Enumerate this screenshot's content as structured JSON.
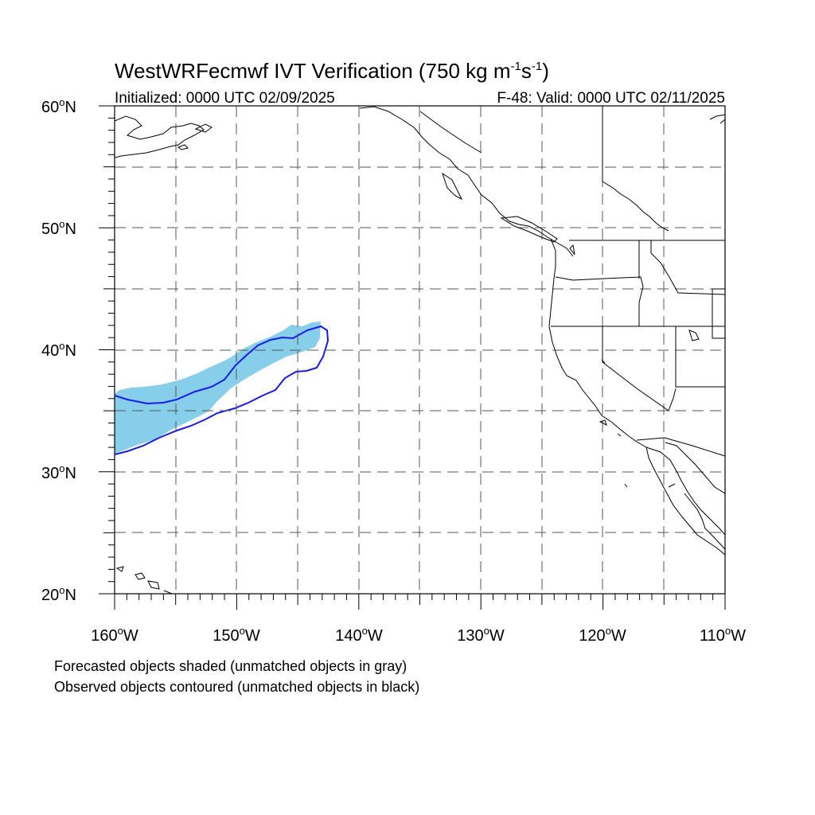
{
  "title": {
    "main": "WestWRFecmwf IVT Verification (750 kg m",
    "sup1": "-1",
    "mid": "s",
    "sup2": "-1",
    "end": ")"
  },
  "subtitle": {
    "left": "Initialized: 0000 UTC 02/09/2025",
    "right": "F-48: Valid: 0000 UTC 02/11/2025"
  },
  "map": {
    "lon_range": [
      -160,
      -110
    ],
    "lat_range": [
      20,
      60
    ],
    "lat_ticks": [
      {
        "value": 60,
        "deg": "60",
        "hemi": "N"
      },
      {
        "value": 50,
        "deg": "50",
        "hemi": "N"
      },
      {
        "value": 40,
        "deg": "40",
        "hemi": "N"
      },
      {
        "value": 30,
        "deg": "30",
        "hemi": "N"
      },
      {
        "value": 20,
        "deg": "20",
        "hemi": "N"
      }
    ],
    "lon_ticks": [
      {
        "value": -160,
        "deg": "160",
        "hemi": "W"
      },
      {
        "value": -150,
        "deg": "150",
        "hemi": "W"
      },
      {
        "value": -140,
        "deg": "140",
        "hemi": "W"
      },
      {
        "value": -130,
        "deg": "130",
        "hemi": "W"
      },
      {
        "value": -120,
        "deg": "120",
        "hemi": "W"
      },
      {
        "value": -110,
        "deg": "110",
        "hemi": "W"
      }
    ],
    "gridlines": "dashed every 5 degrees",
    "forecast_fill_color": "#87ceeb",
    "observed_contour_color": "#1a1ae6",
    "coastline_color": "#000000"
  },
  "footnotes": [
    "Forecasted objects shaded (unmatched objects in gray)",
    "Observed objects contoured (unmatched objects in black)"
  ]
}
